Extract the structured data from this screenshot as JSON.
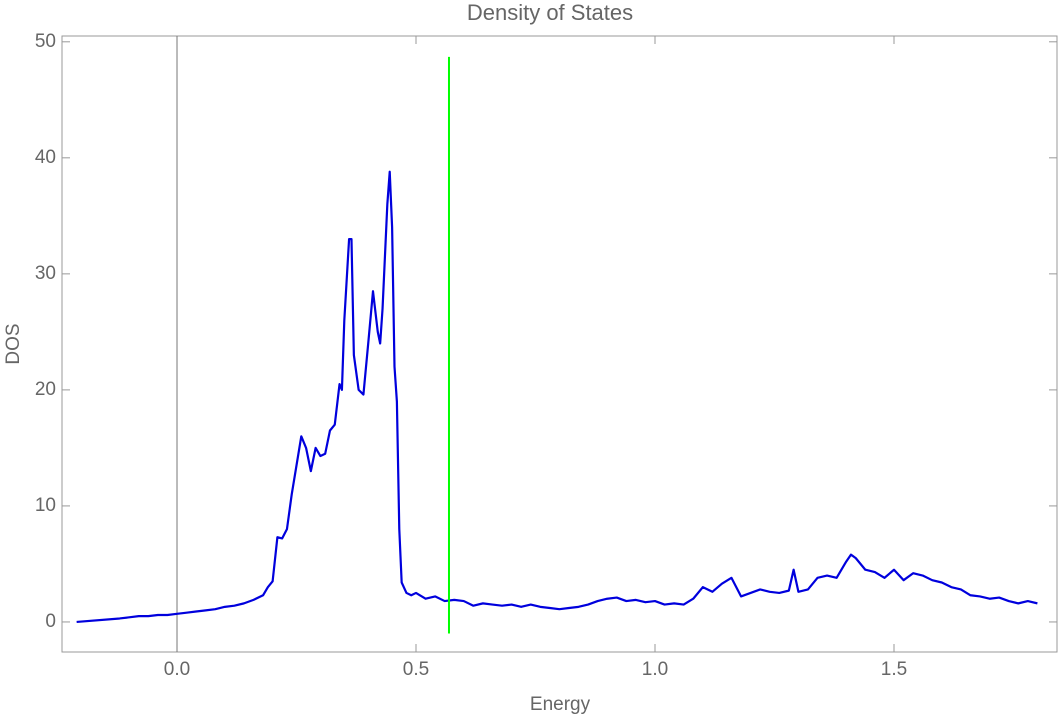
{
  "chart_data": {
    "type": "line",
    "title": "Density of States",
    "x_label": "Energy",
    "y_label": "DOS",
    "x": [
      -0.21,
      -0.12,
      -0.1,
      -0.08,
      -0.06,
      -0.04,
      -0.02,
      0,
      0.02,
      0.04,
      0.06,
      0.08,
      0.1,
      0.12,
      0.14,
      0.16,
      0.18,
      0.19,
      0.2,
      0.21,
      0.22,
      0.23,
      0.24,
      0.25,
      0.26,
      0.27,
      0.28,
      0.29,
      0.3,
      0.31,
      0.32,
      0.33,
      0.34,
      0.345,
      0.35,
      0.36,
      0.365,
      0.37,
      0.38,
      0.39,
      0.4,
      0.41,
      0.42,
      0.425,
      0.43,
      0.44,
      0.445,
      0.45,
      0.455,
      0.46,
      0.465,
      0.47,
      0.48,
      0.49,
      0.5,
      0.52,
      0.54,
      0.56,
      0.58,
      0.6,
      0.62,
      0.64,
      0.66,
      0.68,
      0.7,
      0.72,
      0.74,
      0.76,
      0.78,
      0.8,
      0.82,
      0.84,
      0.86,
      0.88,
      0.9,
      0.92,
      0.94,
      0.96,
      0.98,
      1.0,
      1.02,
      1.04,
      1.06,
      1.08,
      1.1,
      1.12,
      1.14,
      1.16,
      1.18,
      1.2,
      1.22,
      1.24,
      1.26,
      1.28,
      1.29,
      1.3,
      1.32,
      1.34,
      1.36,
      1.38,
      1.4,
      1.41,
      1.42,
      1.44,
      1.46,
      1.48,
      1.5,
      1.52,
      1.54,
      1.56,
      1.58,
      1.6,
      1.62,
      1.64,
      1.66,
      1.68,
      1.7,
      1.72,
      1.74,
      1.76,
      1.78,
      1.8
    ],
    "values": [
      0,
      0.3,
      0.4,
      0.5,
      0.5,
      0.6,
      0.6,
      0.7,
      0.8,
      0.9,
      1.0,
      1.1,
      1.3,
      1.4,
      1.6,
      1.9,
      2.3,
      3.0,
      3.5,
      7.3,
      7.2,
      8,
      11,
      13.5,
      16,
      15,
      13,
      15,
      14.3,
      14.5,
      16.5,
      17,
      20.5,
      20,
      26,
      33,
      33,
      23,
      20,
      19.6,
      24,
      28.5,
      25,
      24,
      27,
      36,
      38.8,
      34,
      22,
      19,
      8,
      3.4,
      2.5,
      2.3,
      2.5,
      2.0,
      2.2,
      1.8,
      1.9,
      1.8,
      1.4,
      1.6,
      1.5,
      1.4,
      1.5,
      1.3,
      1.5,
      1.3,
      1.2,
      1.1,
      1.2,
      1.3,
      1.5,
      1.8,
      2.0,
      2.1,
      1.8,
      1.9,
      1.7,
      1.8,
      1.5,
      1.6,
      1.5,
      2.0,
      3.0,
      2.6,
      3.3,
      3.8,
      2.2,
      2.5,
      2.8,
      2.6,
      2.5,
      2.7,
      4.5,
      2.6,
      2.8,
      3.8,
      4.0,
      3.8,
      5.2,
      5.8,
      5.5,
      4.5,
      4.3,
      3.8,
      4.5,
      3.6,
      4.2,
      4.0,
      3.6,
      3.4,
      3.0,
      2.8,
      2.3,
      2.2,
      2.0,
      2.1,
      1.8,
      1.6,
      1.8,
      1.6
    ],
    "color": "#0000dd",
    "vertical_line": {
      "x": 0.569,
      "y": [
        -1,
        48.7
      ],
      "color": "#00ff00"
    },
    "xlim": [
      -0.2406,
      1.841
    ],
    "xticks": [
      {
        "value": 0,
        "label": "0.0"
      },
      0.5,
      {
        "value": 1,
        "label": "1.0"
      },
      1.5
    ],
    "ylim": [
      -2.59,
      50.5
    ],
    "yticks": [
      0,
      10,
      20,
      30,
      40,
      50
    ]
  }
}
